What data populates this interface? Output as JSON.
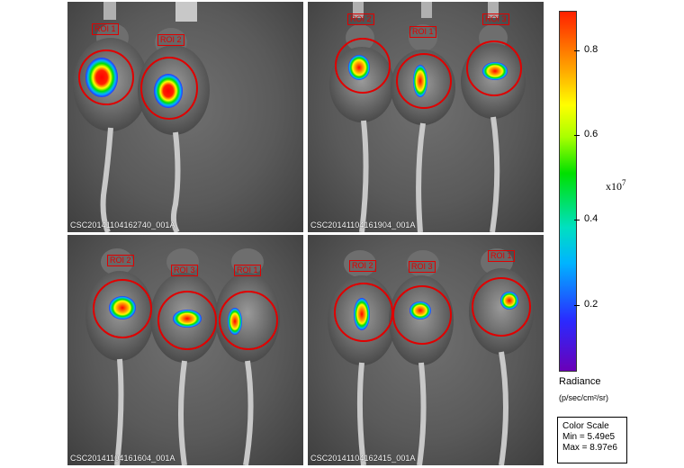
{
  "panels": [
    {
      "id_text": "CSC20141104162740_001A",
      "rois": [
        {
          "label": "ROI 1"
        },
        {
          "label": "ROI 2"
        }
      ]
    },
    {
      "id_text": "CSC20141104161904_001A",
      "rois": [
        {
          "label": "ROI 2"
        },
        {
          "label": "ROI 1"
        },
        {
          "label": "ROI 3"
        }
      ]
    },
    {
      "id_text": "CSC20141104161604_001A",
      "rois": [
        {
          "label": "ROI 2"
        },
        {
          "label": "ROI 3"
        },
        {
          "label": "ROI 1"
        }
      ]
    },
    {
      "id_text": "CSC20141104162415_001A",
      "rois": [
        {
          "label": "ROI 2"
        },
        {
          "label": "ROI 3"
        },
        {
          "label": "ROI 1"
        }
      ]
    }
  ],
  "colorbar": {
    "ticks": [
      "0.8",
      "0.6",
      "0.4",
      "0.2"
    ],
    "multiplier_base": "x10",
    "multiplier_exp": "7",
    "title": "Radiance",
    "units": "(p/sec/cm²/sr)",
    "gradient_colors": [
      "#6a00b8",
      "#2a2aff",
      "#00b4ff",
      "#00e000",
      "#ffff00",
      "#ffa500",
      "#ff2000"
    ]
  },
  "color_scale": {
    "title": "Color Scale",
    "min": "Min = 5.49e5",
    "max": "Max = 8.97e6"
  }
}
